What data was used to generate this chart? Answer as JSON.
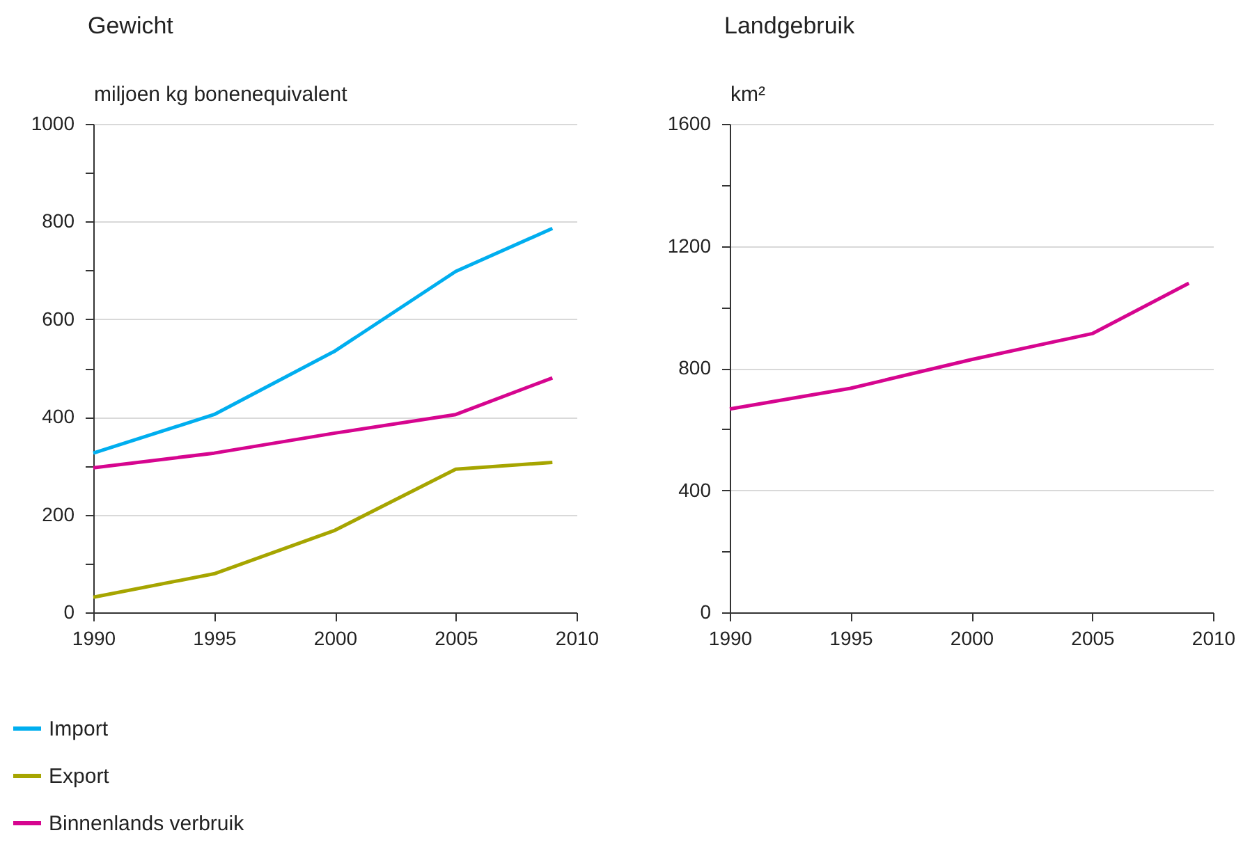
{
  "chart_data": [
    {
      "type": "line",
      "title": "Gewicht",
      "ylabel": "miljoen kg bonenequivalent",
      "x": [
        1990,
        1995,
        2000,
        2005,
        2009
      ],
      "series": [
        {
          "name": "Import",
          "color": "#00aeef",
          "values": [
            326,
            405,
            535,
            698,
            786
          ]
        },
        {
          "name": "Export",
          "color": "#a6a500",
          "values": [
            31,
            79,
            168,
            293,
            307
          ]
        },
        {
          "name": "Binnenlands verbruik",
          "color": "#d6058f",
          "values": [
            296,
            326,
            367,
            405,
            480
          ]
        }
      ],
      "xlim": [
        1990,
        2010
      ],
      "xticks": [
        1990,
        1995,
        2000,
        2005,
        2010
      ],
      "ylim": [
        0,
        1000
      ],
      "yticks": [
        0,
        {
          "value": 100,
          "label": null
        },
        200,
        {
          "value": 300,
          "label": null
        },
        400,
        {
          "value": 500,
          "label": null
        },
        600,
        {
          "value": 700,
          "label": null
        },
        800,
        {
          "value": 900,
          "label": null
        },
        1000
      ],
      "grid": "y",
      "legend": "bottom left"
    },
    {
      "type": "line",
      "title": "Landgebruik",
      "ylabel": "km²",
      "x": [
        1990,
        1995,
        2000,
        2005,
        2009
      ],
      "series": [
        {
          "color": "#d6058f",
          "values": [
            666,
            734,
            828,
            913,
            1078
          ]
        }
      ],
      "xlim": [
        1990,
        2010
      ],
      "xticks": [
        1990,
        1995,
        2000,
        2005,
        2010
      ],
      "ylim": [
        0,
        1600
      ],
      "yticks": [
        0,
        {
          "value": 200,
          "label": null
        },
        400,
        {
          "value": 600,
          "label": null
        },
        800,
        {
          "value": 1000,
          "label": null
        },
        1200,
        {
          "value": 1400,
          "label": null
        },
        1600
      ],
      "grid": "y"
    }
  ]
}
